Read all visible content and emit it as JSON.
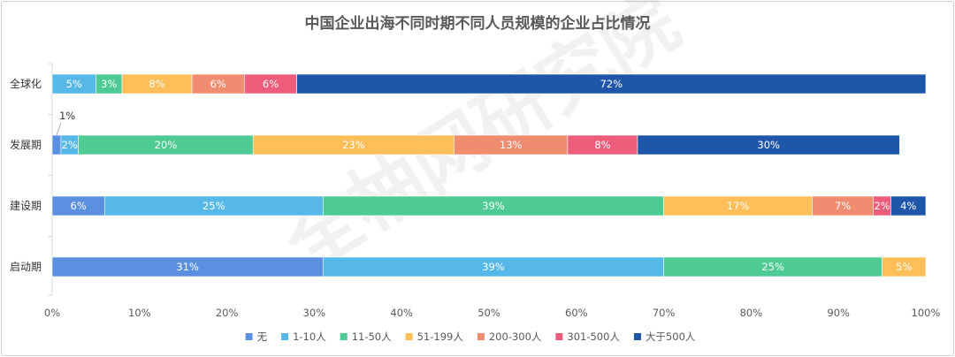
{
  "chart_data": {
    "type": "bar",
    "orientation": "horizontal",
    "stacked": true,
    "title": "中国企业出海不同时期不同人员规模的企业占比情况",
    "watermark": "全柚网研究院",
    "categories": [
      "全球化",
      "发展期",
      "建设期",
      "启动期"
    ],
    "series": [
      {
        "name": "无",
        "color": "#5B8FE0",
        "values": [
          0,
          1,
          6,
          31
        ],
        "labels": [
          "",
          "1%",
          "6%",
          "31%"
        ]
      },
      {
        "name": "1-10人",
        "color": "#56B8E8",
        "values": [
          5,
          2,
          25,
          39
        ],
        "labels": [
          "5%",
          "2%",
          "25%",
          "39%"
        ]
      },
      {
        "name": "11-50人",
        "color": "#4ECB93",
        "values": [
          3,
          20,
          39,
          25
        ],
        "labels": [
          "3%",
          "20%",
          "39%",
          "25%"
        ]
      },
      {
        "name": "51-199人",
        "color": "#FFBE57",
        "values": [
          8,
          23,
          17,
          5
        ],
        "labels": [
          "8%",
          "23%",
          "17%",
          "5%"
        ]
      },
      {
        "name": "200-300人",
        "color": "#F08C70",
        "values": [
          6,
          13,
          7,
          0
        ],
        "labels": [
          "6%",
          "13%",
          "7%",
          ""
        ]
      },
      {
        "name": "301-500人",
        "color": "#EE5C7C",
        "values": [
          6,
          8,
          2,
          0
        ],
        "labels": [
          "6%",
          "8%",
          "2%",
          ""
        ]
      },
      {
        "name": "大于500人",
        "color": "#1F56AA",
        "values": [
          72,
          30,
          4,
          0
        ],
        "labels": [
          "72%",
          "30%",
          "4%",
          ""
        ]
      }
    ],
    "x_ticks": [
      "0%",
      "10%",
      "20%",
      "30%",
      "40%",
      "50%",
      "60%",
      "70%",
      "80%",
      "90%",
      "100%"
    ],
    "xlim": [
      0,
      100
    ],
    "grid": false,
    "legend_position": "bottom"
  }
}
